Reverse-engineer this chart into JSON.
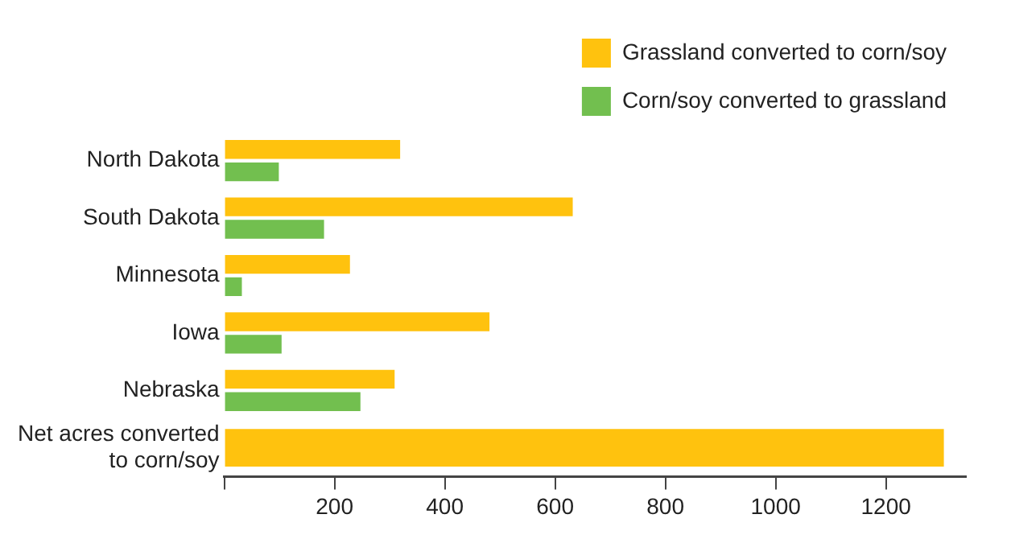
{
  "chart_data": {
    "type": "bar",
    "orientation": "horizontal",
    "categories": [
      "North Dakota",
      "South Dakota",
      "Minnesota",
      "Iowa",
      "Nebraska",
      "Net acres converted to corn/soy"
    ],
    "series": [
      {
        "name": "Grassland converted to corn/soy",
        "color": "#ffc20e",
        "values": [
          319,
          632,
          228,
          481,
          309,
          1305
        ]
      },
      {
        "name": "Corn/soy converted to grassland",
        "color": "#72bf4f",
        "values": [
          99,
          181,
          32,
          104,
          247,
          null
        ]
      }
    ],
    "xlim": [
      0,
      1345
    ],
    "xticks": [
      {
        "value": 0,
        "label": null
      },
      200,
      400,
      600,
      800,
      1000,
      1200
    ],
    "grid": false,
    "legend": "top right"
  }
}
